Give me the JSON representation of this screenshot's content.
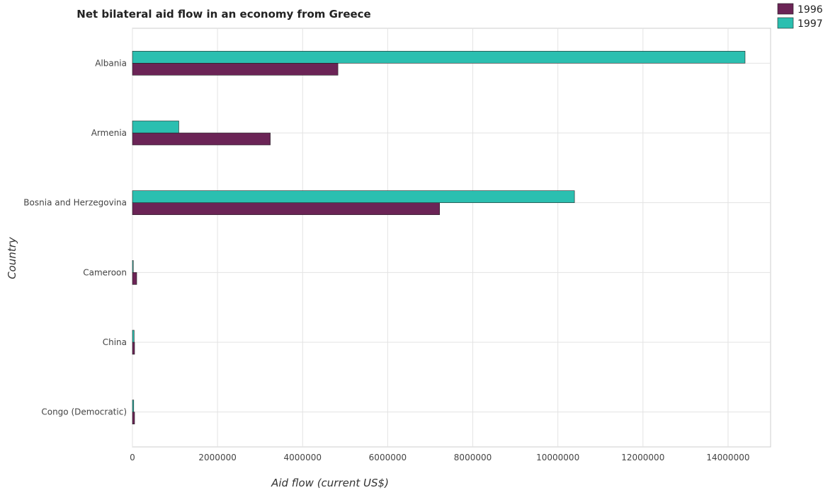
{
  "chart_data": {
    "type": "bar",
    "orientation": "horizontal",
    "title": "Net bilateral aid flow in an economy from Greece",
    "xlabel": "Aid flow (current US$)",
    "ylabel": "Country",
    "categories": [
      "Albania",
      "Armenia",
      "Bosnia and Herzegovina",
      "Cameroon",
      "China",
      "Congo (Democratic)"
    ],
    "series": [
      {
        "name": "1996",
        "color": "#6b2456",
        "values": [
          4830000,
          3240000,
          7220000,
          100000,
          50000,
          50000
        ]
      },
      {
        "name": "1997",
        "color": "#2bbfb0",
        "values": [
          14400000,
          1090000,
          10390000,
          20000,
          40000,
          30000
        ]
      }
    ],
    "xlim": [
      0,
      15000000
    ],
    "xticks": [
      0,
      2000000,
      4000000,
      6000000,
      8000000,
      10000000,
      12000000,
      14000000
    ],
    "xtick_labels": [
      "0",
      "2000000",
      "4000000",
      "6000000",
      "8000000",
      "10000000",
      "12000000",
      "14000000"
    ],
    "grid": true,
    "legend_position": "top-right"
  }
}
